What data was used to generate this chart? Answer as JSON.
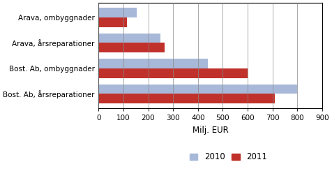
{
  "categories": [
    "Bost. Ab, årsreparationer",
    "Bost. Ab, ombyggnader",
    "Arava, årsreparationer",
    "Arava, ombyggnader"
  ],
  "ytick_labels": [
    "Bost. Ab, årsreparationer",
    "Bost. Ab, ombyggnader",
    "Arava, årsreparationer",
    "Arava, ombyggnader"
  ],
  "values_2010": [
    800,
    440,
    250,
    155
  ],
  "values_2011": [
    710,
    600,
    265,
    115
  ],
  "color_2010": "#a8b8d8",
  "color_2011": "#c0312b",
  "xlabel": "Milj. EUR",
  "xlim": [
    0,
    900
  ],
  "xticks": [
    0,
    100,
    200,
    300,
    400,
    500,
    600,
    700,
    800,
    900
  ],
  "legend_labels": [
    "2010",
    "2011"
  ],
  "bar_height": 0.38,
  "background_color": "#ffffff"
}
